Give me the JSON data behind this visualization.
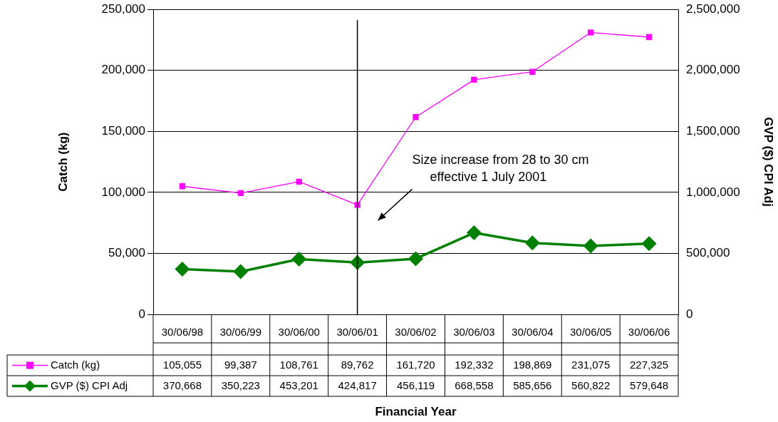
{
  "chart_data": {
    "type": "line",
    "ylabel": "Catch (kg)",
    "y2label": "GVP ($) CPI Adj",
    "categories": [
      "30/06/98",
      "30/06/99",
      "30/06/00",
      "30/06/01",
      "30/06/02",
      "30/06/03",
      "30/06/04",
      "30/06/05",
      "30/06/06"
    ],
    "series": [
      {
        "name": "Catch (kg)",
        "color": "#ff00ff",
        "marker": "square",
        "values": [
          105055,
          99387,
          108761,
          89762,
          161720,
          192332,
          198869,
          231075,
          227325
        ],
        "value_labels": [
          "105,055",
          "99,387",
          "108,761",
          "89,762",
          "161,720",
          "192,332",
          "198,869",
          "231,075",
          "227,325"
        ]
      },
      {
        "name": "GVP ($) CPI Adj",
        "color": "#008000",
        "marker": "diamond",
        "axis": "y2",
        "values": [
          370668,
          350223,
          453201,
          424817,
          456119,
          668558,
          585656,
          560822,
          579648
        ],
        "value_labels": [
          "370,668",
          "350,223",
          "453,201",
          "424,817",
          "456,119",
          "668,558",
          "585,656",
          "560,822",
          "579,648"
        ]
      }
    ],
    "ylim": [
      0,
      250000
    ],
    "yticks": [
      0,
      {
        "value": 50000,
        "label": "50,000"
      },
      {
        "value": 100000,
        "label": "100,000"
      },
      {
        "value": 150000,
        "label": "150,000"
      },
      {
        "value": 200000,
        "label": "200,000"
      },
      {
        "value": 250000,
        "label": "250,000"
      }
    ],
    "y2lim": [
      0,
      2500000
    ],
    "y2ticks": [
      0,
      {
        "value": 500000,
        "label": "500,000"
      },
      {
        "value": 1000000,
        "label": "1,000,000"
      },
      {
        "value": 1500000,
        "label": "1,500,000"
      },
      {
        "value": 2000000,
        "label": "2,000,000"
      },
      {
        "value": 2500000,
        "label": "2,500,000"
      }
    ],
    "grid": "y",
    "legend": "bottom",
    "ref_lines": [
      {
        "axis": "x",
        "value": "30/06/01",
        "color": "#000000"
      }
    ],
    "annotations": [
      "Size increase from 28 to 30 cm\neffective 1 July 2001",
      "Financial Year"
    ]
  }
}
